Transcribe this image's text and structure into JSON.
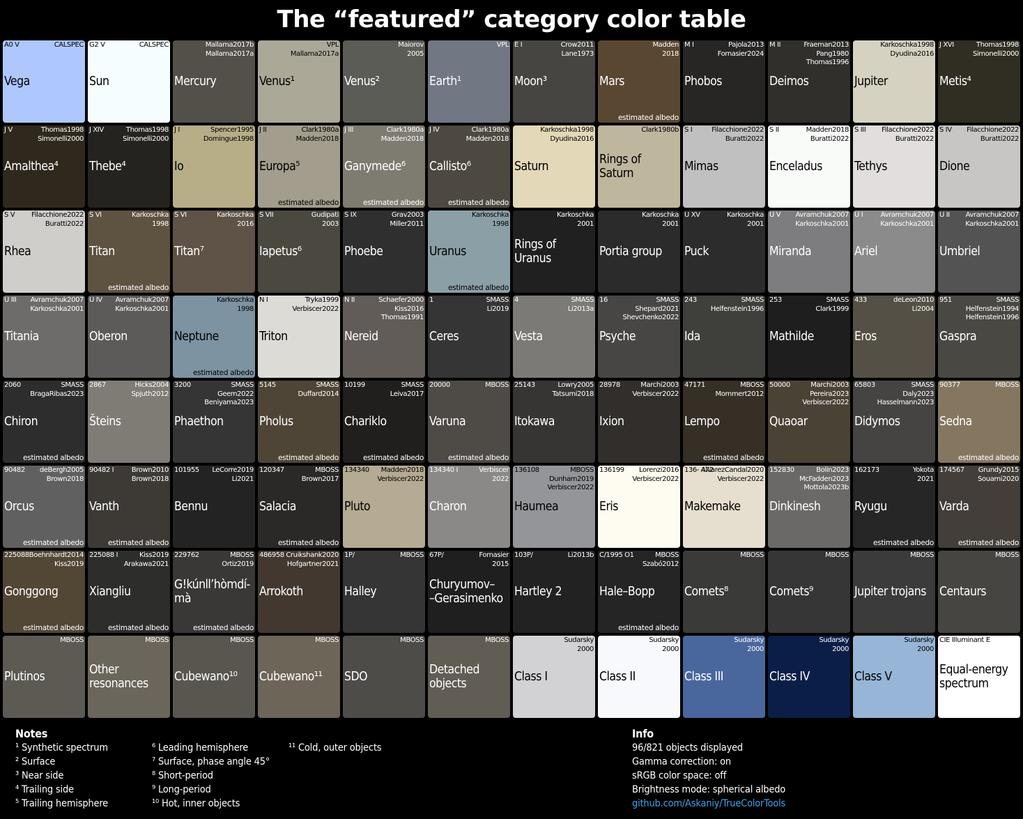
{
  "title": "The “featured” category color table",
  "cells": [
    [
      "A0 V",
      "CALSPEC",
      "Vega",
      "",
      "#aec7fd"
    ],
    [
      "G2 V",
      "CALSPEC",
      "Sun",
      "",
      "#f5fdff"
    ],
    [
      "",
      "Mallama2017b\nMallama2017a",
      "Mercury",
      "",
      "#535049"
    ],
    [
      "",
      "VPL\nMallama2017a",
      "Venus¹",
      "",
      "#aba898"
    ],
    [
      "",
      "Maiorov\n2005",
      "Venus²",
      "",
      "#5a5c55"
    ],
    [
      "",
      "VPL",
      "Earth¹",
      "",
      "#717783"
    ],
    [
      "E I",
      "Crow2011\nLane1973",
      "Moon³",
      "",
      "#474541"
    ],
    [
      "",
      "Madden\n2018",
      "Mars",
      "estimated albedo",
      "#5a4731"
    ],
    [
      "M I",
      "Pajola2013\nFornasier2024",
      "Phobos",
      "",
      "#272624"
    ],
    [
      "M II",
      "Fraeman2013\nPang1980\nThomas1996",
      "Deimos",
      "",
      "#302f2c"
    ],
    [
      "",
      "Karkoschka1998\nDyudina2016",
      "Jupiter",
      "",
      "#d5d2c1"
    ],
    [
      "J XVI",
      "Thomas1998\nSimonelli2000",
      "Metis⁴",
      "",
      "#302e22"
    ],
    [
      "J V",
      "Thomas1998\nSimonelli2000",
      "Amalthea⁴",
      "",
      "#2f281d"
    ],
    [
      "J XIV",
      "Thomas1998\nSimonelli2000",
      "Thebe⁴",
      "",
      "#24231f"
    ],
    [
      "J I",
      "Spencer1995\nDomingue1998",
      "Io",
      "",
      "#b7ae88"
    ],
    [
      "J II",
      "Clark1980a\nMadden2018",
      "Europa⁵",
      "estimated albedo",
      "#a29d8c"
    ],
    [
      "J III",
      "Clark1980a\nMadden2018",
      "Ganymede⁶",
      "estimated albedo",
      "#7e7b71"
    ],
    [
      "J IV",
      "Clark1980a\nMadden2018",
      "Callisto⁶",
      "estimated albedo",
      "#4d4940"
    ],
    [
      "",
      "Karkoschka1998\nDyudina2016",
      "Saturn",
      "",
      "#e3d8b8"
    ],
    [
      "",
      "Clark1980b",
      "Rings of\nSaturn",
      "",
      "#bfb69e"
    ],
    [
      "S I",
      "Filacchione2022\nBuratti2022",
      "Mimas",
      "",
      "#c0c0c1"
    ],
    [
      "S II",
      "Madden2018\nBuratti2022",
      "Enceladus",
      "",
      "#f9fbf9"
    ],
    [
      "S III",
      "Filacchione2022\nBuratti2022",
      "Tethys",
      "",
      "#e2dedd"
    ],
    [
      "S IV",
      "Filacchione2022\nBuratti2022",
      "Dione",
      "",
      "#c7c6c4"
    ],
    [
      "S V",
      "Filacchione2022\nBuratti2022",
      "Rhea",
      "",
      "#d0ceca"
    ],
    [
      "S VI",
      "Karkoschka\n1998",
      "Titan",
      "estimated albedo",
      "#5e5240"
    ],
    [
      "S VI",
      "Karkoschka\n2016",
      "Titan⁷",
      "",
      "#5e5346"
    ],
    [
      "S VII",
      "Gudipati\n2003",
      "Iapetus⁶",
      "",
      "#4b4840"
    ],
    [
      "S IX",
      "Grav2003\nMiller2011",
      "Phoebe",
      "",
      "#2f2f30"
    ],
    [
      "",
      "Karkoschka\n1998",
      "Uranus",
      "estimated albedo",
      "#8ba0a6"
    ],
    [
      "",
      "Karkoschka\n2001",
      "Rings of\nUranus",
      "",
      "#202020"
    ],
    [
      "",
      "Karkoschka\n2001",
      "Portia group",
      "",
      "#2b2b2b"
    ],
    [
      "U XV",
      "Karkoschka\n2001",
      "Puck",
      "",
      "#2c2c2c"
    ],
    [
      "U V",
      "Avramchuk2007\nKarkoschka2001",
      "Miranda",
      "",
      "#7d7d7f"
    ],
    [
      "U I",
      "Avramchuk2007\nKarkoschka2001",
      "Ariel",
      "",
      "#8c8b8b"
    ],
    [
      "U II",
      "Avramchuk2007\nKarkoschka2001",
      "Umbriel",
      "",
      "#535353"
    ],
    [
      "U III",
      "Avramchuk2007\nKarkoschka2001",
      "Titania",
      "",
      "#6d6c6b"
    ],
    [
      "U IV",
      "Avramchuk2007\nKarkoschka2001",
      "Oberon",
      "",
      "#5d5b59"
    ],
    [
      "",
      "Karkoschka\n1998",
      "Neptune",
      "estimated albedo",
      "#7d93a2"
    ],
    [
      "N I",
      "Tryka1999\nVerbiscer2022",
      "Triton",
      "",
      "#dcdbd6"
    ],
    [
      "N II",
      "Schaefer2000\nKiss2016\nThomas1991",
      "Nereid",
      "",
      "#615c58"
    ],
    [
      "1",
      "SMASS\nLi2019",
      "Ceres",
      "",
      "#353535"
    ],
    [
      "4",
      "SMASS\nLi2013a",
      "Vesta",
      "",
      "#7b7a77"
    ],
    [
      "16",
      "SMASS\nShepard2021\nShevchenko2022",
      "Psyche",
      "",
      "#474645"
    ],
    [
      "243",
      "SMASS\nHelfenstein1996",
      "Ida",
      "",
      "#3f3f3c"
    ],
    [
      "253",
      "SMASS\nClark1999",
      "Mathilde",
      "",
      "#1e1e1e"
    ],
    [
      "433",
      "deLeon2010\nLi2004",
      "Eros",
      "",
      "#545045"
    ],
    [
      "951",
      "SMASS\nHelfenstein1994\nHelfenstein1996",
      "Gaspra",
      "",
      "#4a4843"
    ],
    [
      "2060",
      "SMASS\nBragaRibas2023",
      "Chiron",
      "estimated albedo",
      "#2d2d2d"
    ],
    [
      "2867",
      "Hicks2004\nSpjuth2012",
      "Šteins",
      "",
      "#7f7b75"
    ],
    [
      "3200",
      "SMASS\nGeem2022\nBeniyama2023",
      "Phaethon",
      "",
      "#353535"
    ],
    [
      "5145",
      "SMASS\nDuffard2014",
      "Pholus",
      "estimated albedo",
      "#4e4536"
    ],
    [
      "10199",
      "SMASS\nLeiva2017",
      "Chariklo",
      "estimated albedo",
      "#201f1d"
    ],
    [
      "20000",
      "MBOSS",
      "Varuna",
      "estimated albedo",
      "#4e4a45"
    ],
    [
      "25143",
      "Lowry2005\nTatsumi2018",
      "Itokawa",
      "",
      "#363534"
    ],
    [
      "28978",
      "Marchi2003\nVerbiscer2022",
      "Ixion",
      "",
      "#312e2b"
    ],
    [
      "47171",
      "MBOSS\nMommert2012",
      "Lempo",
      "estimated albedo",
      "#352f26"
    ],
    [
      "50000",
      "Marchi2003\nPereira2023\nVerbiscer2022",
      "Quaoar",
      "",
      "#4b4236"
    ],
    [
      "65803",
      "SMASS\nDaly2023\nHasselmann2023",
      "Didymos",
      "",
      "#454443"
    ],
    [
      "90377",
      "MBOSS",
      "Sedna",
      "estimated albedo",
      "#85775f"
    ],
    [
      "90482",
      "deBergh2005\nBrown2018",
      "Orcus",
      "estimated albedo",
      "#606060"
    ],
    [
      "90482 I",
      "Brown2010\nBrown2018",
      "Vanth",
      "estimated albedo",
      "#3d3a36"
    ],
    [
      "101955",
      "LeCorre2019\nLi2021",
      "Bennu",
      "",
      "#232323"
    ],
    [
      "120347",
      "MBOSS\nBrown2017",
      "Salacia",
      "estimated albedo",
      "#2a2928"
    ],
    [
      "134340",
      "Madden2018\nVerbiscer2022",
      "Pluto",
      "",
      "#b5aa92"
    ],
    [
      "134340 I",
      "Verbiscer\n2022",
      "Charon",
      "",
      "#8a8988"
    ],
    [
      "136108",
      "MBOSS\nDunham2019\nVerbiscer2022",
      "Haumea",
      "",
      "#939599"
    ],
    [
      "136199",
      "Lorenzi2016\nVerbiscer2022",
      "Eris",
      "",
      "#fefcf0"
    ],
    [
      "136-\n472",
      "AlvarezCandal2020\nVerbiscer2022",
      "Makemake",
      "",
      "#e6dfcf"
    ],
    [
      "152830",
      "Bolin2023\nMcFadden2023\nMottola2023b",
      "Dinkinesh",
      "",
      "#6b6968"
    ],
    [
      "162173",
      "Yokota\n2021",
      "Ryugu",
      "estimated albedo",
      "#262626"
    ],
    [
      "174567",
      "Grundy2015\nSouami2020",
      "Varda",
      "estimated albedo",
      "#433e39"
    ],
    [
      "225088",
      "Boehnhardt2014\nKiss2019",
      "Gonggong",
      "estimated albedo",
      "#524634"
    ],
    [
      "225088 I",
      "Kiss2019\nArakawa2021",
      "Xiangliu",
      "estimated albedo",
      "#2d2d2c"
    ],
    [
      "229762",
      "MBOSS\nOrtiz2019",
      "G!kúnll’hòmdí-\nmà",
      "estimated albedo",
      "#3a3836"
    ],
    [
      "486958",
      "Cruikshank2020\nHofgartner2021",
      "Arrokoth",
      "",
      "#43382f"
    ],
    [
      "1P/",
      "MBOSS",
      "Halley",
      "",
      "#353535"
    ],
    [
      "67P/",
      "Fornasier\n2015",
      "Churyumov–\n–Gerasimenko",
      "",
      "#1f1f1f"
    ],
    [
      "103P/",
      "Li2013b",
      "Hartley 2",
      "",
      "#222222"
    ],
    [
      "C/1995 O1",
      "MBOSS\nSzabó2012",
      "Hale–Bopp",
      "estimated albedo",
      "#252525"
    ],
    [
      "",
      "MBOSS",
      "Comets⁸",
      "",
      "#3a3a39"
    ],
    [
      "",
      "MBOSS",
      "Comets⁹",
      "",
      "#363636"
    ],
    [
      "",
      "MBOSS",
      "Jupiter trojans",
      "",
      "#3b3b3b"
    ],
    [
      "",
      "MBOSS",
      "Centaurs",
      "",
      "#474542"
    ],
    [
      "",
      "MBOSS",
      "Plutinos",
      "",
      "#5d5a54"
    ],
    [
      "",
      "MBOSS",
      "Other\nresonances",
      "",
      "#6b665b"
    ],
    [
      "",
      "MBOSS",
      "Cubewano¹⁰",
      "",
      "#59564f"
    ],
    [
      "",
      "MBOSS",
      "Cubewano¹¹",
      "",
      "#6d6558"
    ],
    [
      "",
      "MBOSS",
      "SDO",
      "",
      "#4e4c49"
    ],
    [
      "",
      "MBOSS",
      "Detached\nobjects",
      "",
      "#615c54"
    ],
    [
      "",
      "Sudarsky\n2000",
      "Class I",
      "",
      "#d2d2d5"
    ],
    [
      "",
      "Sudarsky\n2000",
      "Class II",
      "",
      "#f8f9fd"
    ],
    [
      "",
      "Sudarsky\n2000",
      "Class III",
      "",
      "#4a679d"
    ],
    [
      "",
      "Sudarsky\n2000",
      "Class IV",
      "",
      "#0a1e47"
    ],
    [
      "",
      "Sudarsky\n2000",
      "Class V",
      "",
      "#97b6d7"
    ],
    [
      "CIE Illuminant E",
      "",
      "Equal-energy\nspectrum",
      "",
      "#ffffff"
    ]
  ],
  "notes": {
    "header": "Notes",
    "col1": [
      "¹ Synthetic spectrum",
      "² Surface",
      "³ Near side",
      "⁴ Trailing side",
      "⁵ Trailing hemisphere"
    ],
    "col2": [
      "⁶ Leading hemisphere",
      "⁷ Surface, phase angle 45°",
      "⁸ Short-period",
      "⁹ Long-period",
      "¹⁰ Hot, inner objects"
    ],
    "col3": [
      "¹¹ Cold, outer objects"
    ]
  },
  "info": {
    "header": "Info",
    "lines": [
      "96/821 objects displayed",
      "Gamma correction: on",
      "sRGB color space: off",
      "Brightness mode: spherical albedo"
    ],
    "link": "github.com/Askaniy/TrueColorTools"
  }
}
